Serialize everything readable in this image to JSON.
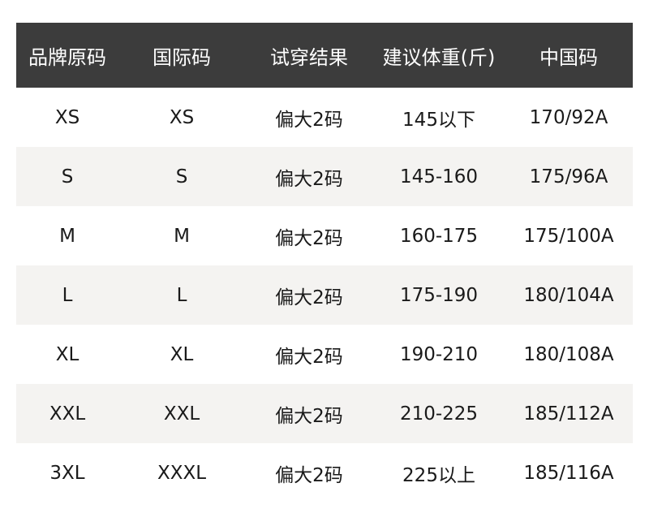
{
  "headers": [
    "品牌原码",
    "国际码",
    "试穿结果",
    "建议体重(斤)",
    "中国码"
  ],
  "rows": [
    [
      "XS",
      "XS",
      "偏大2码",
      "145以下",
      "170/92A"
    ],
    [
      "S",
      "S",
      "偏大2码",
      "145-160",
      "175/96A"
    ],
    [
      "M",
      "M",
      "偏大2码",
      "160-175",
      "175/100A"
    ],
    [
      "L",
      "L",
      "偏大2码",
      "175-190",
      "180/104A"
    ],
    [
      "XL",
      "XL",
      "偏大2码",
      "190-210",
      "180/108A"
    ],
    [
      "XXL",
      "XXL",
      "偏大2码",
      "210-225",
      "185/112A"
    ],
    [
      "3XL",
      "XXXL",
      "偏大2码",
      "225以上",
      "185/116A"
    ]
  ],
  "colors": {
    "header_bg": "#3c3c3c",
    "alt_row_bg": "#f4f3f1"
  }
}
